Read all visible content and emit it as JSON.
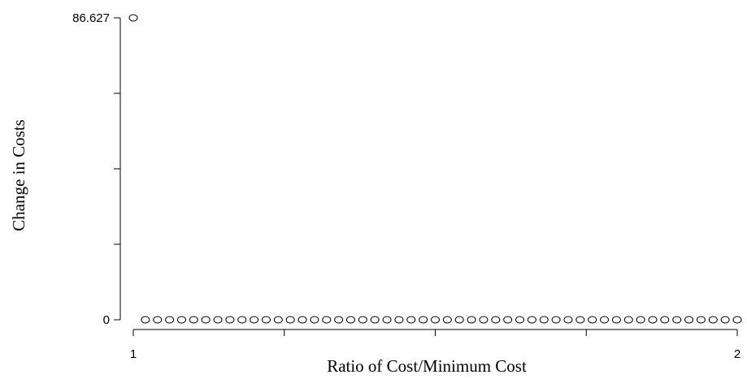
{
  "chart_data": {
    "type": "scatter",
    "title": "",
    "xlabel": "Ratio of Cost/Minimum Cost",
    "ylabel": "Change in Costs",
    "xlim": [
      1,
      2
    ],
    "ylim": [
      0,
      86.627
    ],
    "x_ticks": [
      1,
      1.25,
      1.5,
      1.75,
      2
    ],
    "x_tick_labels": [
      "1",
      "",
      "",
      "",
      "2"
    ],
    "y_ticks": [
      0,
      21.65675,
      43.3135,
      64.97025,
      86.627
    ],
    "y_tick_labels": [
      "0",
      "",
      "",
      "",
      "86.627"
    ],
    "grid": false,
    "marker": "open-circle",
    "points": [
      {
        "x": 1.0,
        "y": 86.627
      },
      {
        "x": 1.02,
        "y": 0
      },
      {
        "x": 1.04,
        "y": 0
      },
      {
        "x": 1.06,
        "y": 0
      },
      {
        "x": 1.08,
        "y": 0
      },
      {
        "x": 1.1,
        "y": 0
      },
      {
        "x": 1.12,
        "y": 0
      },
      {
        "x": 1.14,
        "y": 0
      },
      {
        "x": 1.16,
        "y": 0
      },
      {
        "x": 1.18,
        "y": 0
      },
      {
        "x": 1.2,
        "y": 0
      },
      {
        "x": 1.22,
        "y": 0
      },
      {
        "x": 1.24,
        "y": 0
      },
      {
        "x": 1.26,
        "y": 0
      },
      {
        "x": 1.28,
        "y": 0
      },
      {
        "x": 1.3,
        "y": 0
      },
      {
        "x": 1.32,
        "y": 0
      },
      {
        "x": 1.34,
        "y": 0
      },
      {
        "x": 1.36,
        "y": 0
      },
      {
        "x": 1.38,
        "y": 0
      },
      {
        "x": 1.4,
        "y": 0
      },
      {
        "x": 1.42,
        "y": 0
      },
      {
        "x": 1.44,
        "y": 0
      },
      {
        "x": 1.46,
        "y": 0
      },
      {
        "x": 1.48,
        "y": 0
      },
      {
        "x": 1.5,
        "y": 0
      },
      {
        "x": 1.52,
        "y": 0
      },
      {
        "x": 1.54,
        "y": 0
      },
      {
        "x": 1.56,
        "y": 0
      },
      {
        "x": 1.58,
        "y": 0
      },
      {
        "x": 1.6,
        "y": 0
      },
      {
        "x": 1.62,
        "y": 0
      },
      {
        "x": 1.64,
        "y": 0
      },
      {
        "x": 1.66,
        "y": 0
      },
      {
        "x": 1.68,
        "y": 0
      },
      {
        "x": 1.7,
        "y": 0
      },
      {
        "x": 1.72,
        "y": 0
      },
      {
        "x": 1.74,
        "y": 0
      },
      {
        "x": 1.76,
        "y": 0
      },
      {
        "x": 1.78,
        "y": 0
      },
      {
        "x": 1.8,
        "y": 0
      },
      {
        "x": 1.82,
        "y": 0
      },
      {
        "x": 1.84,
        "y": 0
      },
      {
        "x": 1.86,
        "y": 0
      },
      {
        "x": 1.88,
        "y": 0
      },
      {
        "x": 1.9,
        "y": 0
      },
      {
        "x": 1.92,
        "y": 0
      },
      {
        "x": 1.94,
        "y": 0
      },
      {
        "x": 1.96,
        "y": 0
      },
      {
        "x": 1.98,
        "y": 0
      },
      {
        "x": 2.0,
        "y": 0
      }
    ]
  }
}
